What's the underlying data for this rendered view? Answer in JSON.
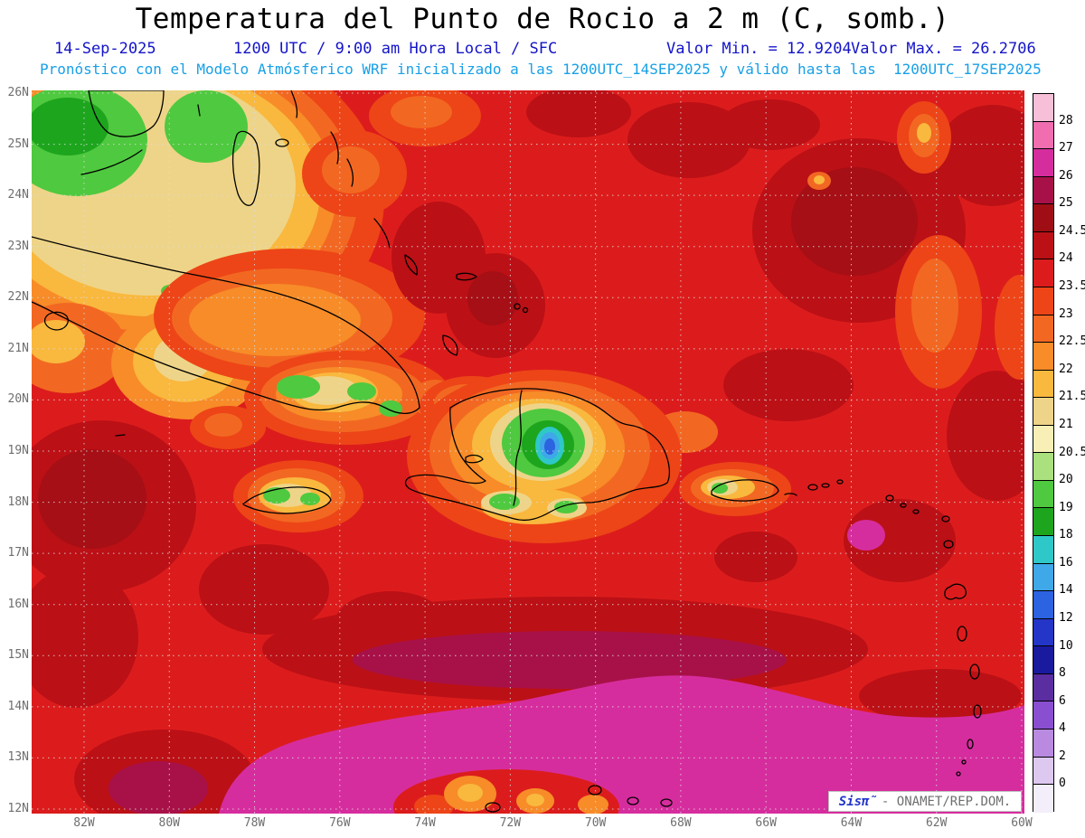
{
  "colors": {
    "header-blue": "#1414c8",
    "header-cyan": "#18a0e6",
    "axis-gray": "#6e6e6e",
    "grid-gray": "#dcdcdc",
    "brand-blue": "#2233cc",
    "watermark-gray": "#6f6f6f",
    "map-base-red": "#dc1c1c"
  },
  "header": {
    "title": "Temperatura del Punto de Rocio a 2 m (C, somb.)",
    "date": "14-Sep-2025",
    "run_info": "1200 UTC / 9:00 am Hora Local / SFC",
    "min_label": "Valor Min. = 12.9204",
    "max_label": "Valor Max. = 26.2706",
    "forecast_line": "Pronóstico con el Modelo Atmósferico WRF inicializado a las 1200UTC_14SEP2025 y válido hasta las  1200UTC_17SEP2025"
  },
  "map": {
    "lat_ticks": [
      "26N",
      "25N",
      "24N",
      "23N",
      "22N",
      "21N",
      "20N",
      "19N",
      "18N",
      "17N",
      "16N",
      "15N",
      "14N",
      "13N",
      "12N"
    ],
    "lon_ticks": [
      "82W",
      "80W",
      "78W",
      "76W",
      "74W",
      "72W",
      "70W",
      "68W",
      "66W",
      "64W",
      "62W",
      "60W"
    ]
  },
  "colorbar": {
    "labels": [
      "28",
      "27",
      "26",
      "25",
      "24.5",
      "24",
      "23.5",
      "23",
      "22.5",
      "22",
      "21.5",
      "21",
      "20.5",
      "20",
      "19",
      "18",
      "16",
      "14",
      "12",
      "10",
      "8",
      "6",
      "4",
      "2",
      "0"
    ],
    "colors": [
      "#f8c0d8",
      "#f06eb0",
      "#d62d9e",
      "#a81148",
      "#9e0e14",
      "#bb1016",
      "#dc1c1c",
      "#ed4517",
      "#f26822",
      "#f78c28",
      "#f9b83e",
      "#eed488",
      "#f7efb5",
      "#abe07e",
      "#4fc93f",
      "#1ea51e",
      "#2fc8c8",
      "#3fa8e8",
      "#2b63e0",
      "#2336c8",
      "#1a1a9e",
      "#5a2ea0",
      "#8a4fd0",
      "#b98ae0",
      "#ddc8f0",
      "#f4eefb"
    ]
  },
  "watermark": {
    "brand": "Sisπ̃",
    "text": "- ONAMET/REP.DOM."
  }
}
